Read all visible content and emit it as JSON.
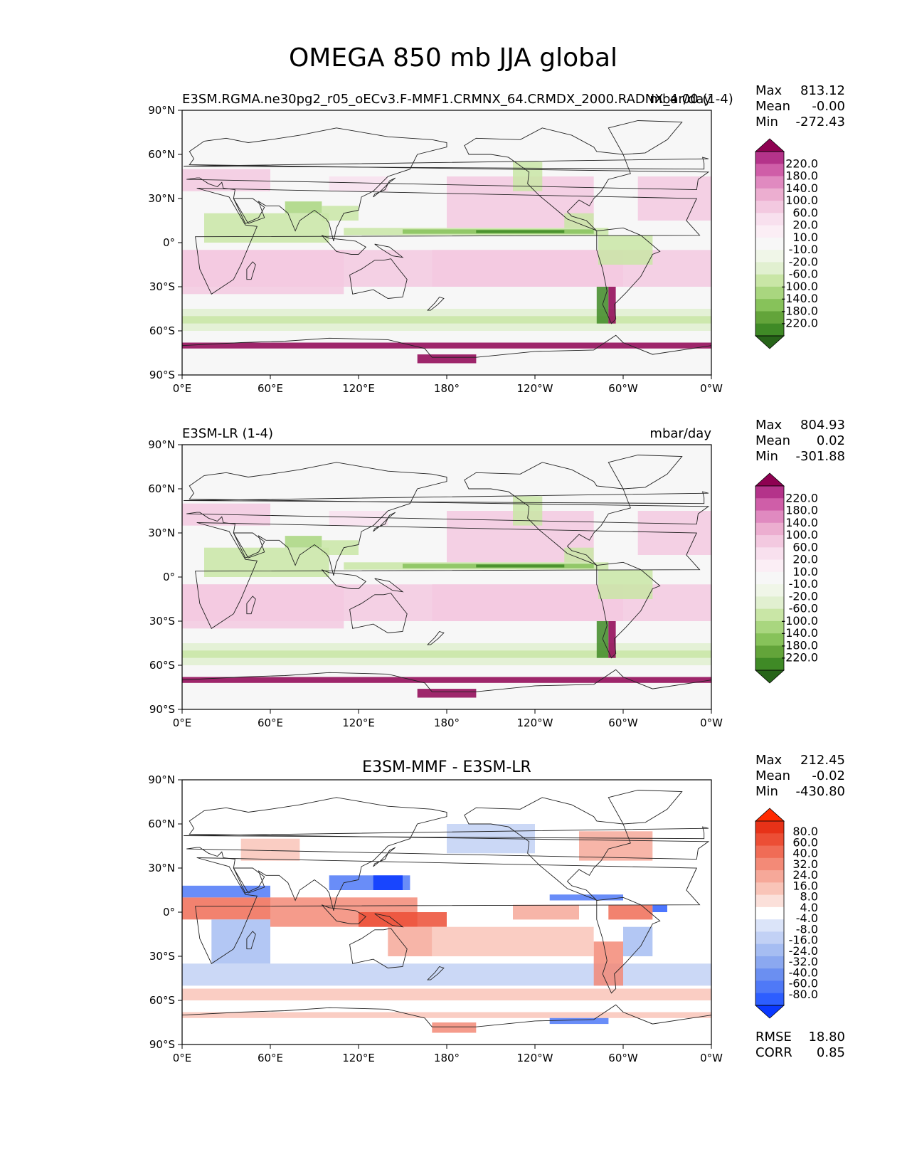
{
  "title": "OMEGA 850 mb JJA global",
  "colors": {
    "abs": [
      "#276419",
      "#3f8a26",
      "#63a43a",
      "#87c25a",
      "#a9d67f",
      "#c9e6a6",
      "#e1f0d0",
      "#f0f6e8",
      "#f7f7f7",
      "#fbeef5",
      "#f8e0ee",
      "#f3c9e0",
      "#ecaed0",
      "#e08ac0",
      "#cf5ea8",
      "#b4338a",
      "#8e0152"
    ],
    "diff": [
      "#0a38ff",
      "#2d5eff",
      "#4f79f7",
      "#6b8ff1",
      "#8ba8f0",
      "#a6bdf2",
      "#c2d1f5",
      "#dbe4f9",
      "#ffffff",
      "#fbe0da",
      "#f9c4b8",
      "#f6a899",
      "#f38a77",
      "#f06c56",
      "#ec4e35",
      "#e73218",
      "#ff2a00"
    ],
    "ocean_sub": "#f0b9d9",
    "ocean_asc": "#b9dd93",
    "ocean_neutral": "#f7f7f7",
    "itcz_strong": "#4d9f2e"
  },
  "chart_data": [
    {
      "type": "heatmap",
      "name": "test",
      "subtitle_left": "E3SM.RGMA.ne30pg2_r05_oECv3.F-MMF1.CRMNX_64.CRMDX_2000.RADNX_4.00 (1-4)",
      "subtitle_right": "mbar/day",
      "center_title": "",
      "stats": [
        {
          "label": "Max",
          "value": "813.12"
        },
        {
          "label": "Mean",
          "value": "-0.00"
        },
        {
          "label": "Min",
          "value": "-272.43"
        }
      ],
      "colorbar_ticks": [
        "220.0",
        "180.0",
        "140.0",
        "100.0",
        "60.0",
        "20.0",
        "10.0",
        "-10.0",
        "-20.0",
        "-60.0",
        "-100.0",
        "-140.0",
        "-180.0",
        "-220.0"
      ],
      "colormap": "abs",
      "xticks": [
        "0°E",
        "60°E",
        "120°E",
        "180°",
        "120°W",
        "60°W",
        "0°W"
      ],
      "yticks": [
        "90°N",
        "60°N",
        "30°N",
        "0°",
        "30°S",
        "60°S",
        "90°S"
      ],
      "xlim": [
        0,
        360
      ],
      "ylim": [
        -90,
        90
      ]
    },
    {
      "type": "heatmap",
      "name": "reference",
      "subtitle_left": "E3SM-LR (1-4)",
      "subtitle_right": "mbar/day",
      "center_title": "",
      "stats": [
        {
          "label": "Max",
          "value": "804.93"
        },
        {
          "label": "Mean",
          "value": "0.02"
        },
        {
          "label": "Min",
          "value": "-301.88"
        }
      ],
      "colorbar_ticks": [
        "220.0",
        "180.0",
        "140.0",
        "100.0",
        "60.0",
        "20.0",
        "10.0",
        "-10.0",
        "-20.0",
        "-60.0",
        "-100.0",
        "-140.0",
        "-180.0",
        "-220.0"
      ],
      "colormap": "abs",
      "xticks": [
        "0°E",
        "60°E",
        "120°E",
        "180°",
        "120°W",
        "60°W",
        "0°W"
      ],
      "yticks": [
        "90°N",
        "60°N",
        "30°N",
        "0°",
        "30°S",
        "60°S",
        "90°S"
      ],
      "xlim": [
        0,
        360
      ],
      "ylim": [
        -90,
        90
      ]
    },
    {
      "type": "heatmap",
      "name": "difference",
      "subtitle_left": "",
      "subtitle_right": "",
      "center_title": "E3SM-MMF - E3SM-LR",
      "stats": [
        {
          "label": "Max",
          "value": "212.45"
        },
        {
          "label": "Mean",
          "value": "-0.02"
        },
        {
          "label": "Min",
          "value": "-430.80"
        }
      ],
      "extra_stats": [
        {
          "label": "RMSE",
          "value": "18.80"
        },
        {
          "label": "CORR",
          "value": "0.85"
        }
      ],
      "colorbar_ticks": [
        "80.0",
        "60.0",
        "40.0",
        "32.0",
        "24.0",
        "16.0",
        "8.0",
        "4.0",
        "-4.0",
        "-8.0",
        "-16.0",
        "-24.0",
        "-32.0",
        "-40.0",
        "-60.0",
        "-80.0"
      ],
      "colormap": "diff",
      "xticks": [
        "0°E",
        "60°E",
        "120°E",
        "180°",
        "120°W",
        "60°W",
        "0°W"
      ],
      "yticks": [
        "90°N",
        "60°N",
        "30°N",
        "0°",
        "30°S",
        "60°S",
        "90°S"
      ],
      "xlim": [
        0,
        360
      ],
      "ylim": [
        -90,
        90
      ]
    }
  ]
}
